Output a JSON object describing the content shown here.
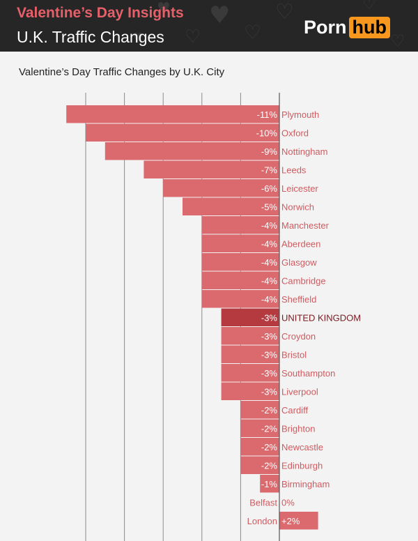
{
  "header": {
    "title_line1": "Valentine’s Day Insights",
    "title_line2": "U.K. Traffic Changes",
    "logo_part1": "Porn",
    "logo_part2": "hub"
  },
  "colors": {
    "bar": "#da6a6e",
    "highlight_bar": "#b43a3f",
    "grid": "#8a8a8a",
    "label_text": "#cf5b60",
    "highlight_text": "#7a1b22",
    "value_text": "#ffffff"
  },
  "chart_data": {
    "type": "bar",
    "orientation": "horizontal",
    "title": "Valentine’s Day Traffic Changes by U.K. City",
    "xlabel": "",
    "ylabel": "",
    "xlim": [
      -11,
      3
    ],
    "grid": true,
    "highlight": "UNITED KINGDOM",
    "categories": [
      "Plymouth",
      "Oxford",
      "Nottingham",
      "Leeds",
      "Leicester",
      "Norwich",
      "Manchester",
      "Aberdeen",
      "Glasgow",
      "Cambridge",
      "Sheffield",
      "UNITED KINGDOM",
      "Croydon",
      "Bristol",
      "Southampton",
      "Liverpool",
      "Cardiff",
      "Brighton",
      "Newcastle",
      "Edinburgh",
      "Birmingham",
      "Belfast",
      "London"
    ],
    "values": [
      -11,
      -10,
      -9,
      -7,
      -6,
      -5,
      -4,
      -4,
      -4,
      -4,
      -4,
      -3,
      -3,
      -3,
      -3,
      -3,
      -2,
      -2,
      -2,
      -2,
      -1,
      0,
      2
    ],
    "value_labels": [
      "-11%",
      "-10%",
      "-9%",
      "-7%",
      "-6%",
      "-5%",
      "-4%",
      "-4%",
      "-4%",
      "-4%",
      "-4%",
      "-3%",
      "-3%",
      "-3%",
      "-3%",
      "-3%",
      "-2%",
      "-2%",
      "-2%",
      "-2%",
      "-1%",
      "0%",
      "+2%"
    ]
  }
}
